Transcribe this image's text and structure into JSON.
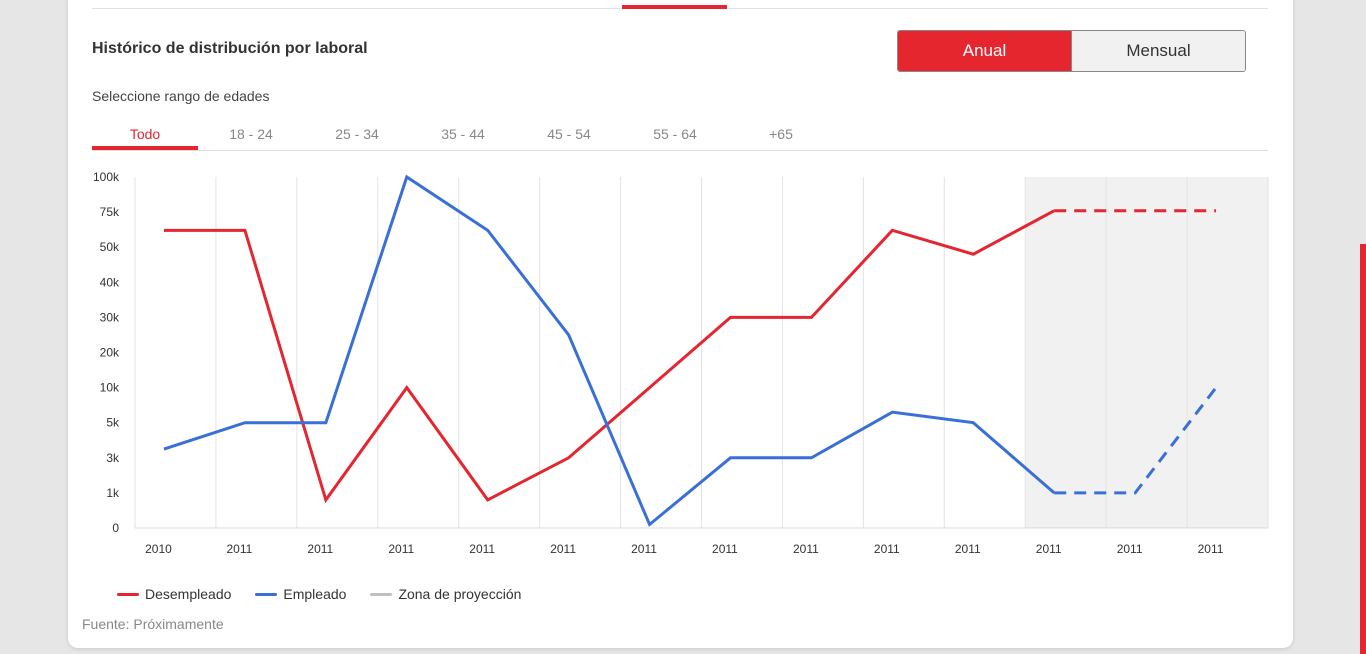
{
  "title": "Histórico de distribución por laboral",
  "toggle": {
    "options": [
      "Anual",
      "Mensual"
    ],
    "active": "Anual"
  },
  "range_label": "Seleccione rango de edades",
  "tabs": [
    "Todo",
    "18 - 24",
    "25 - 34",
    "35 - 44",
    "45 - 54",
    "55 - 64",
    "+65"
  ],
  "active_tab": "Todo",
  "legend": [
    {
      "label": "Desempleado",
      "color": "#e3262f"
    },
    {
      "label": "Empleado",
      "color": "#3a6fd8"
    },
    {
      "label": "Zona de proyección",
      "color": "#c0c0c0"
    }
  ],
  "source": "Fuente: Próximamente",
  "chart_data": {
    "type": "line",
    "y_ticks": [
      "0",
      "1k",
      "3k",
      "5k",
      "10k",
      "20k",
      "30k",
      "40k",
      "50k",
      "75k",
      "100k"
    ],
    "categories": [
      "2010",
      "2011",
      "2011",
      "2011",
      "2011",
      "2011",
      "2011",
      "2011",
      "2011",
      "2011",
      "2011",
      "2011",
      "2011",
      "2011"
    ],
    "projection_start_index": 11,
    "series": [
      {
        "name": "Desempleado",
        "color": "#e3262f",
        "values": [
          62000,
          62000,
          800,
          10000,
          800,
          3000,
          10000,
          30000,
          30000,
          62000,
          48000,
          76000,
          76000,
          76000
        ],
        "projected_from_index": 11
      },
      {
        "name": "Empleado",
        "color": "#3a6fd8",
        "values": [
          3500,
          5000,
          5000,
          100000,
          62000,
          25000,
          100,
          3000,
          3000,
          6500,
          5000,
          1000,
          1000,
          10000
        ],
        "projected_from_index": 11
      }
    ],
    "y_scale": "ordinal-ticks",
    "ylim": [
      0,
      100000
    ],
    "grid": true
  }
}
